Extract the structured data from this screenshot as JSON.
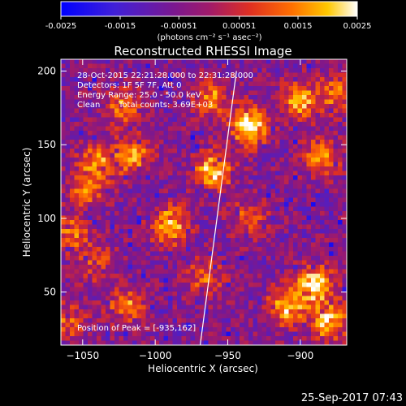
{
  "chart_data": {
    "type": "heatmap",
    "title": "Reconstructed RHESSI Image",
    "xlabel": "Heliocentric X (arcsec)",
    "ylabel": "Heliocentric Y (arcsec)",
    "xlim": [
      -1065,
      -868
    ],
    "ylim": [
      14,
      208
    ],
    "x_ticks": [
      -1050,
      -1000,
      -950,
      -900
    ],
    "y_ticks": [
      50,
      100,
      150,
      200
    ],
    "colorbar": {
      "min": -0.0025,
      "max": 0.0025,
      "ticks": [
        "-0.0025",
        "-0.0015",
        "-0.00051",
        "0.00051",
        "0.0015",
        "0.0025"
      ],
      "tick_values": [
        -0.0025,
        -0.0015,
        -0.00051,
        0.00051,
        0.0015,
        0.0025
      ],
      "unit_label": "(photons cm⁻² s⁻¹ asec⁻²)"
    },
    "annotations": [
      "28-Oct-2015 22:21:28.000 to 22:31:28.000",
      "Detectors: 1F 5F 7F, Att 0",
      "Energy Range: 25.0 - 50.0 keV",
      "Clean",
      "Total counts: 3.69E+03"
    ],
    "peak_label": "Position of Peak = [-935,162]",
    "limb_line": {
      "x": [
        -944,
        -969
      ],
      "y": [
        200,
        14
      ]
    },
    "sources": [
      {
        "x": -935,
        "y": 162,
        "value": 0.0025
      },
      {
        "x": -960,
        "y": 132,
        "value": 0.0022
      },
      {
        "x": -990,
        "y": 95,
        "value": 0.0022
      },
      {
        "x": -1015,
        "y": 142,
        "value": 0.0017
      },
      {
        "x": -1040,
        "y": 138,
        "value": 0.0015
      },
      {
        "x": -1048,
        "y": 118,
        "value": 0.0013
      },
      {
        "x": -1058,
        "y": 90,
        "value": 0.0012
      },
      {
        "x": -1022,
        "y": 175,
        "value": 0.0014
      },
      {
        "x": -960,
        "y": 182,
        "value": 0.0014
      },
      {
        "x": -900,
        "y": 180,
        "value": 0.0018
      },
      {
        "x": -885,
        "y": 142,
        "value": 0.0015
      },
      {
        "x": -875,
        "y": 185,
        "value": 0.0012
      },
      {
        "x": -890,
        "y": 55,
        "value": 0.0024
      },
      {
        "x": -910,
        "y": 40,
        "value": 0.002
      },
      {
        "x": -880,
        "y": 30,
        "value": 0.0022
      },
      {
        "x": -1020,
        "y": 40,
        "value": 0.0015
      },
      {
        "x": -965,
        "y": 60,
        "value": 0.0012
      },
      {
        "x": -935,
        "y": 100,
        "value": 0.001
      },
      {
        "x": -1060,
        "y": 30,
        "value": 0.001
      },
      {
        "x": -1040,
        "y": 70,
        "value": 0.0009
      }
    ],
    "background_value": -0.0005
  },
  "footer": {
    "timestamp": "25-Sep-2017 07:43"
  }
}
